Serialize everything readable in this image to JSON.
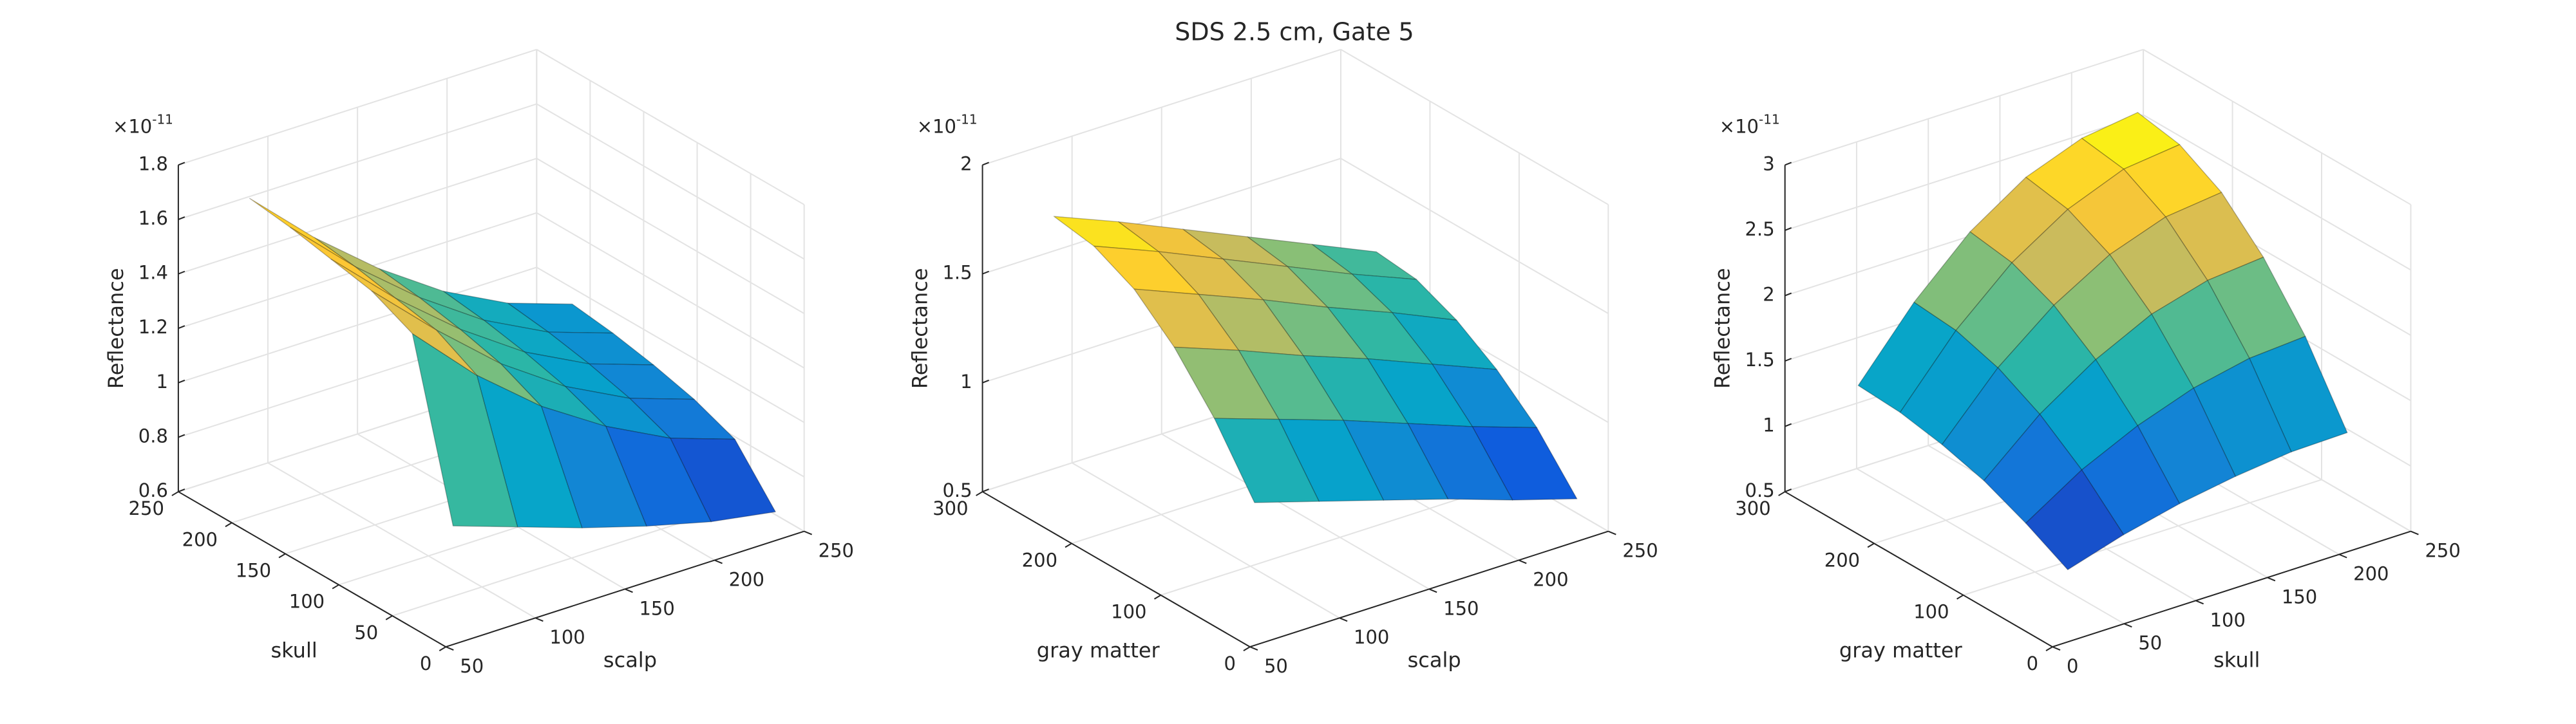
{
  "title": "SDS 2.5 cm, Gate 5",
  "colormap": [
    "#352a87",
    "#0f5cdd",
    "#1481d6",
    "#06a4ca",
    "#2eb7a4",
    "#87bf77",
    "#d1bb59",
    "#fec832",
    "#f9fb0e"
  ],
  "chart_data": [
    {
      "type": "surface",
      "xlabel": "scalp",
      "ylabel": "skull",
      "zlabel": "Reflectance",
      "zexp": {
        "base": "×10",
        "power": "-11"
      },
      "x": [
        60,
        96,
        132,
        168,
        204,
        240
      ],
      "y": [
        10,
        48,
        86,
        124,
        162,
        200
      ],
      "z": [
        [
          1.0,
          0.92,
          0.84,
          0.77,
          0.71,
          0.67
        ],
        [
          1.62,
          1.39,
          1.2,
          1.05,
          0.93,
          0.85
        ],
        [
          1.69,
          1.47,
          1.27,
          1.11,
          0.99,
          0.91
        ],
        [
          1.72,
          1.5,
          1.31,
          1.15,
          1.03,
          0.95
        ],
        [
          1.75,
          1.53,
          1.34,
          1.18,
          1.06,
          0.98
        ],
        [
          1.77,
          1.55,
          1.36,
          1.2,
          1.08,
          1.0
        ]
      ],
      "xlim": [
        50,
        250
      ],
      "ylim": [
        0,
        250
      ],
      "zlim": [
        0.6,
        1.8
      ],
      "xticks": [
        50,
        100,
        150,
        200,
        250
      ],
      "yticks": [
        0,
        50,
        100,
        150,
        200,
        250
      ],
      "zticks": [
        0.6,
        0.8,
        1,
        1.2,
        1.4,
        1.6,
        1.8
      ],
      "grid": true
    },
    {
      "type": "surface",
      "xlabel": "scalp",
      "ylabel": "gray matter",
      "zlabel": "Reflectance",
      "zexp": {
        "base": "×10",
        "power": "-11"
      },
      "x": [
        60,
        96,
        132,
        168,
        204,
        240
      ],
      "y": [
        15,
        60,
        105,
        150,
        195,
        240
      ],
      "z": [
        [
          1.1,
          1.01,
          0.92,
          0.83,
          0.73,
          0.64
        ],
        [
          1.38,
          1.28,
          1.18,
          1.07,
          0.96,
          0.86
        ],
        [
          1.6,
          1.49,
          1.37,
          1.26,
          1.14,
          1.02
        ],
        [
          1.76,
          1.64,
          1.52,
          1.39,
          1.27,
          1.14
        ],
        [
          1.85,
          1.73,
          1.6,
          1.47,
          1.34,
          1.22
        ],
        [
          1.88,
          1.76,
          1.63,
          1.5,
          1.37,
          1.24
        ]
      ],
      "xlim": [
        50,
        250
      ],
      "ylim": [
        0,
        300
      ],
      "zlim": [
        0.5,
        2
      ],
      "xticks": [
        50,
        100,
        150,
        200,
        250
      ],
      "yticks": [
        0,
        100,
        200,
        300
      ],
      "zticks": [
        0.5,
        1,
        1.5,
        2
      ],
      "grid": true
    },
    {
      "type": "surface",
      "xlabel": "skull",
      "ylabel": "gray matter",
      "zlabel": "Reflectance",
      "zexp": {
        "base": "×10",
        "power": "-11"
      },
      "x": [
        20,
        59,
        98,
        137,
        176,
        215
      ],
      "y": [
        15,
        62,
        109,
        156,
        203,
        250
      ],
      "z": [
        [
          0.96,
          1.09,
          1.19,
          1.26,
          1.31,
          1.32
        ],
        [
          1.13,
          1.4,
          1.6,
          1.75,
          1.84,
          1.87
        ],
        [
          1.27,
          1.64,
          1.92,
          2.13,
          2.25,
          2.29
        ],
        [
          1.36,
          1.81,
          2.15,
          2.4,
          2.55,
          2.6
        ],
        [
          1.42,
          1.91,
          2.29,
          2.56,
          2.73,
          2.78
        ],
        [
          1.44,
          1.94,
          2.34,
          2.62,
          2.78,
          2.84
        ]
      ],
      "xlim": [
        0,
        250
      ],
      "ylim": [
        0,
        300
      ],
      "zlim": [
        0.5,
        3
      ],
      "xticks": [
        0,
        50,
        100,
        150,
        200,
        250
      ],
      "yticks": [
        0,
        100,
        200,
        300
      ],
      "zticks": [
        0.5,
        1,
        1.5,
        2,
        2.5,
        3
      ],
      "grid": true
    }
  ]
}
